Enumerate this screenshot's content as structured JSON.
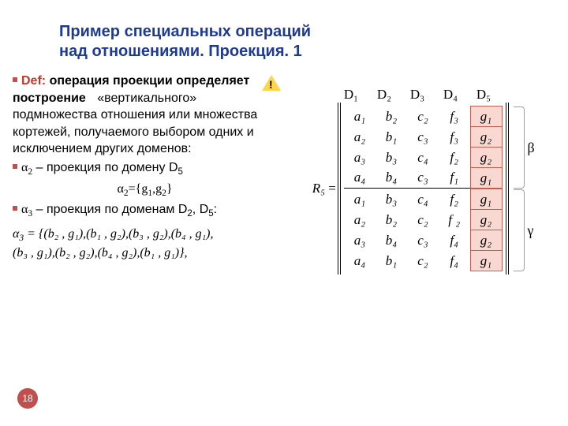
{
  "title_color": "#1f3a93",
  "title_line1": "Пример специальных операций",
  "title_line2": "над отношениями. Проекция. 1",
  "def_color": "#c0392b",
  "bullet_color": "#c0504d",
  "def_label": "Def:",
  "def_bold1": "операция проекции",
  "def_bold2": "определяет построение",
  "def_rest": "«вертикального» подмножества отношения или множества кортежей, получаемого выбором одних и исключением других доменов:",
  "alpha2_text_pre": "α",
  "alpha2_sub": "2",
  "alpha2_rest": " – проекция по домену D",
  "alpha2_domain_sub": "5",
  "alpha2_eq": "α",
  "alpha2_eq_sub": "2",
  "alpha2_eq_rhs": "={g",
  "alpha2_eq_g1sub": "1",
  "alpha2_eq_mid": ",g",
  "alpha2_eq_g2sub": "2",
  "alpha2_eq_end": "}",
  "alpha3_text_pre": "α",
  "alpha3_sub": "3",
  "alpha3_rest": " – проекция по доменам D",
  "alpha3_d2sub": "2",
  "alpha3_comma": ", D",
  "alpha3_d5sub": "5",
  "alpha3_colon": ":",
  "alpha3_def_line1_a": "α",
  "alpha3_def_line1_sub": "3",
  "alpha3_def_line1_b": " = {(b",
  "alpha3_def_line1": "₂ , g₁),(b₁ , g₂),(b₃ , g₂),(b₄ , g₁),",
  "alpha3_def_line2": "(b₃ , g₁),(b₂ , g₂),(b₄ , g₂),(b₁ , g₁)},",
  "page_number": "18",
  "badge_color": "#c0504d",
  "headers": [
    "D₁",
    "D₂",
    "D₃",
    "D₄",
    "D₅"
  ],
  "r5_label": "R₅",
  "eq_sign": "=",
  "matrix_rows": [
    [
      "a₁",
      "b₂",
      "c₂",
      "f₃",
      "g₁"
    ],
    [
      "a₂",
      "b₁",
      "c₃",
      "f₃",
      "g₂"
    ],
    [
      "a₃",
      "b₃",
      "c₄",
      "f₂",
      "g₂"
    ],
    [
      "a₄",
      "b₄",
      "c₃",
      "f₁",
      "g₁"
    ],
    [
      "a₁",
      "b₃",
      "c₄",
      "f₂",
      "g₁"
    ],
    [
      "a₂",
      "b₂",
      "c₂",
      "f ₂",
      "g₂"
    ],
    [
      "a₃",
      "b₄",
      "c₃",
      "f₄",
      "g₂"
    ],
    [
      "a₄",
      "b₁",
      "c₂",
      "f₄",
      "g₁"
    ]
  ],
  "highlight_col": 4,
  "sep_after_row": 4,
  "beta_label": "β",
  "gamma_label": "γ",
  "bracket_color": "#9e9e9e"
}
